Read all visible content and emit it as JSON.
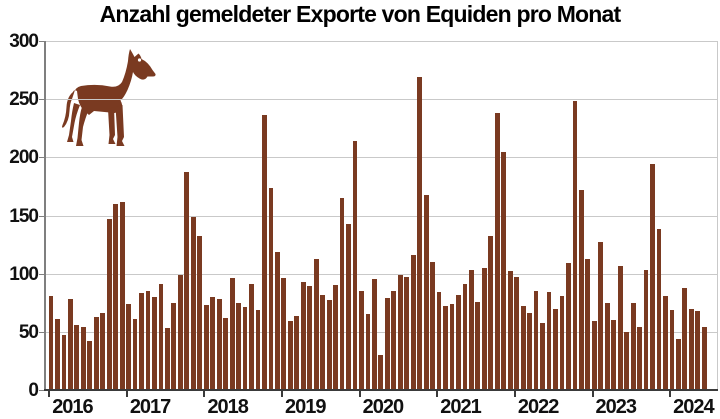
{
  "title": "Anzahl gemeldeter Exporte von Equiden pro Monat",
  "colors": {
    "bar": "#7a3a21",
    "horse": "#7a3a21",
    "grid": "#c9c9c9",
    "y_axis": "#7f7f7f",
    "x_axis": "#3a3a3a",
    "text": "#111111",
    "background": "#ffffff"
  },
  "chart_data": {
    "type": "bar",
    "title": "Anzahl gemeldeter Exporte von Equiden pro Monat",
    "xlabel": "",
    "ylabel": "",
    "ylim": [
      0,
      300
    ],
    "y_ticks": [
      0,
      50,
      100,
      150,
      200,
      250,
      300
    ],
    "x_tick_labels": [
      "2016",
      "2017",
      "2018",
      "2019",
      "2020",
      "2021",
      "2022",
      "2023",
      "2024"
    ],
    "grid": true,
    "legend": "none",
    "icon": "horse-silhouette",
    "x_start": {
      "year": 2016,
      "month": 1
    },
    "x_end": {
      "year": 2024,
      "month": 6
    },
    "monthly_values": {
      "2016": [
        81,
        61,
        47,
        78,
        56,
        54,
        42,
        63,
        66,
        147,
        160,
        162
      ],
      "2017": [
        74,
        61,
        83,
        85,
        80,
        91,
        53,
        75,
        99,
        187,
        149,
        132
      ],
      "2018": [
        73,
        80,
        78,
        62,
        96,
        75,
        71,
        91,
        69,
        236,
        174,
        119
      ],
      "2019": [
        96,
        59,
        64,
        93,
        89,
        113,
        82,
        77,
        90,
        165,
        143,
        214
      ],
      "2020": [
        85,
        65,
        95,
        30,
        79,
        85,
        99,
        97,
        116,
        269,
        168,
        110
      ],
      "2021": [
        84,
        72,
        74,
        82,
        91,
        103,
        76,
        105,
        132,
        238,
        205,
        102
      ],
      "2022": [
        97,
        72,
        66,
        85,
        58,
        84,
        70,
        81,
        109,
        248,
        172,
        113
      ],
      "2023": [
        59,
        127,
        75,
        60,
        107,
        50,
        75,
        54,
        103,
        194,
        138,
        81
      ],
      "2024": [
        69,
        44,
        88,
        70,
        68,
        54
      ]
    }
  }
}
